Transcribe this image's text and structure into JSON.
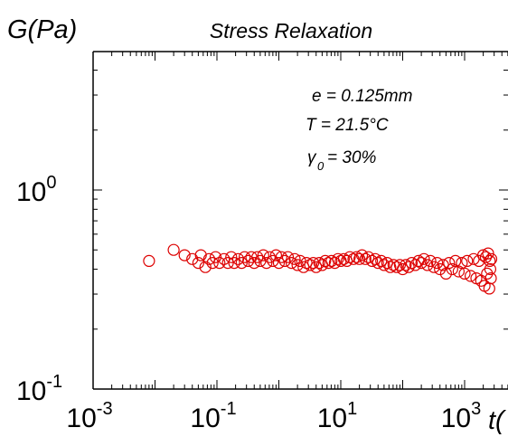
{
  "chart_data": {
    "type": "scatter",
    "title": "Stress Relaxation",
    "ylabel": "G(Pa)",
    "xlabel": "t(",
    "x_scale": "log",
    "y_scale": "log",
    "xlim": [
      0.001,
      3000
    ],
    "ylim": [
      0.1,
      3.5
    ],
    "grid": false,
    "legend": "none",
    "x_ticks": [
      {
        "value": 0.001,
        "base": "10",
        "exp": "-3"
      },
      {
        "value": 0.1,
        "base": "10",
        "exp": "-1"
      },
      {
        "value": 10,
        "base": "10",
        "exp": "1"
      },
      {
        "value": 1000,
        "base": "10",
        "exp": "3"
      }
    ],
    "y_ticks": [
      {
        "value": 0.1,
        "base": "10",
        "exp": "-1"
      },
      {
        "value": 1,
        "base": "10",
        "exp": "0"
      }
    ],
    "annotations": {
      "thickness": "e = 0.125mm",
      "temperature": "T = 21.5°C",
      "strain_symbol": "γ",
      "strain_sub": "0",
      "strain_value": "= 30%"
    },
    "marker_color": "#dd0000",
    "marker": "open-circle",
    "series": [
      {
        "points": [
          [
            0.008,
            0.44
          ],
          [
            0.02,
            0.5
          ],
          [
            0.03,
            0.47
          ],
          [
            0.04,
            0.45
          ],
          [
            0.05,
            0.43
          ],
          [
            0.055,
            0.47
          ],
          [
            0.065,
            0.41
          ],
          [
            0.075,
            0.45
          ],
          [
            0.085,
            0.43
          ],
          [
            0.095,
            0.46
          ],
          [
            0.11,
            0.43
          ],
          [
            0.13,
            0.45
          ],
          [
            0.15,
            0.43
          ],
          [
            0.17,
            0.46
          ],
          [
            0.19,
            0.43
          ],
          [
            0.22,
            0.45
          ],
          [
            0.25,
            0.43
          ],
          [
            0.28,
            0.46
          ],
          [
            0.32,
            0.44
          ],
          [
            0.36,
            0.46
          ],
          [
            0.4,
            0.43
          ],
          [
            0.45,
            0.46
          ],
          [
            0.5,
            0.44
          ],
          [
            0.56,
            0.47
          ],
          [
            0.63,
            0.43
          ],
          [
            0.71,
            0.46
          ],
          [
            0.8,
            0.44
          ],
          [
            0.9,
            0.47
          ],
          [
            1.0,
            0.43
          ],
          [
            1.1,
            0.46
          ],
          [
            1.25,
            0.44
          ],
          [
            1.4,
            0.46
          ],
          [
            1.6,
            0.43
          ],
          [
            1.8,
            0.45
          ],
          [
            2.0,
            0.42
          ],
          [
            2.2,
            0.44
          ],
          [
            2.5,
            0.41
          ],
          [
            2.8,
            0.43
          ],
          [
            3.2,
            0.42
          ],
          [
            3.6,
            0.43
          ],
          [
            4.0,
            0.41
          ],
          [
            4.5,
            0.43
          ],
          [
            5.0,
            0.42
          ],
          [
            5.6,
            0.44
          ],
          [
            6.3,
            0.43
          ],
          [
            7.1,
            0.44
          ],
          [
            8.0,
            0.43
          ],
          [
            9.0,
            0.45
          ],
          [
            10,
            0.44
          ],
          [
            11.2,
            0.45
          ],
          [
            12.5,
            0.44
          ],
          [
            14,
            0.46
          ],
          [
            16,
            0.45
          ],
          [
            18,
            0.46
          ],
          [
            20,
            0.45
          ],
          [
            22,
            0.47
          ],
          [
            25,
            0.45
          ],
          [
            28,
            0.46
          ],
          [
            32,
            0.44
          ],
          [
            36,
            0.45
          ],
          [
            40,
            0.43
          ],
          [
            45,
            0.44
          ],
          [
            50,
            0.42
          ],
          [
            56,
            0.43
          ],
          [
            63,
            0.41
          ],
          [
            71,
            0.42
          ],
          [
            80,
            0.41
          ],
          [
            90,
            0.42
          ],
          [
            100,
            0.4
          ],
          [
            112,
            0.42
          ],
          [
            125,
            0.41
          ],
          [
            140,
            0.43
          ],
          [
            160,
            0.42
          ],
          [
            180,
            0.44
          ],
          [
            200,
            0.43
          ],
          [
            220,
            0.45
          ],
          [
            250,
            0.42
          ],
          [
            280,
            0.44
          ],
          [
            320,
            0.41
          ],
          [
            360,
            0.43
          ],
          [
            400,
            0.4
          ],
          [
            450,
            0.42
          ],
          [
            500,
            0.38
          ],
          [
            560,
            0.43
          ],
          [
            630,
            0.4
          ],
          [
            710,
            0.44
          ],
          [
            800,
            0.39
          ],
          [
            900,
            0.43
          ],
          [
            1000,
            0.38
          ],
          [
            1100,
            0.44
          ],
          [
            1250,
            0.37
          ],
          [
            1400,
            0.45
          ],
          [
            1550,
            0.36
          ],
          [
            1700,
            0.44
          ],
          [
            1850,
            0.35
          ],
          [
            2000,
            0.47
          ],
          [
            2100,
            0.33
          ],
          [
            2200,
            0.46
          ],
          [
            2300,
            0.38
          ],
          [
            2400,
            0.48
          ],
          [
            2500,
            0.32
          ],
          [
            2550,
            0.44
          ],
          [
            2600,
            0.4
          ],
          [
            2650,
            0.36
          ],
          [
            2700,
            0.45
          ]
        ]
      }
    ]
  }
}
